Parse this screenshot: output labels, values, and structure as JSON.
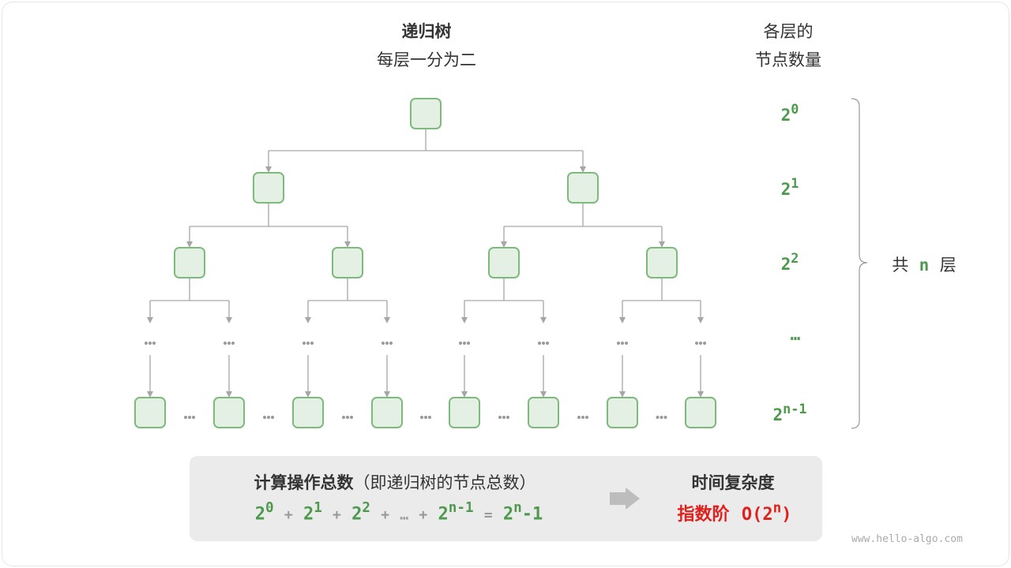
{
  "tree": {
    "title": "递归树",
    "subtitle": "每层一分为二",
    "levels": 4,
    "leaf_count": 8
  },
  "right": {
    "title_line1": "各层的",
    "title_line2": "节点数量",
    "levels": [
      {
        "base": "2",
        "exp": "0"
      },
      {
        "base": "2",
        "exp": "1"
      },
      {
        "base": "2",
        "exp": "2"
      },
      {
        "ellipsis": "…"
      },
      {
        "base": "2",
        "exp": "n-1"
      }
    ],
    "total_prefix": "共",
    "total_n": "n",
    "total_suffix": "层"
  },
  "summary": {
    "title": "计算操作总数",
    "title_note": "（即递归树的节点总数）",
    "terms": [
      {
        "base": "2",
        "exp": "0"
      },
      {
        "base": "2",
        "exp": "1"
      },
      {
        "base": "2",
        "exp": "2"
      },
      {
        "ellipsis": "…"
      },
      {
        "base": "2",
        "exp": "n-1"
      }
    ],
    "plus": "+",
    "equals": "=",
    "result_base": "2",
    "result_exp": "n",
    "result_suffix": "-1",
    "complexity_title": "时间复杂度",
    "complexity_name": "指数阶",
    "complexity_expr_prefix": "O(2",
    "complexity_exp": "n",
    "complexity_expr_suffix": ")"
  },
  "colors": {
    "node_fill": "#e3f0e3",
    "node_stroke": "#7dbb7d",
    "green": "#4d9a4d",
    "red": "#e0201c",
    "edge": "#a6a6a6"
  },
  "watermark": "www.hello-algo.com"
}
